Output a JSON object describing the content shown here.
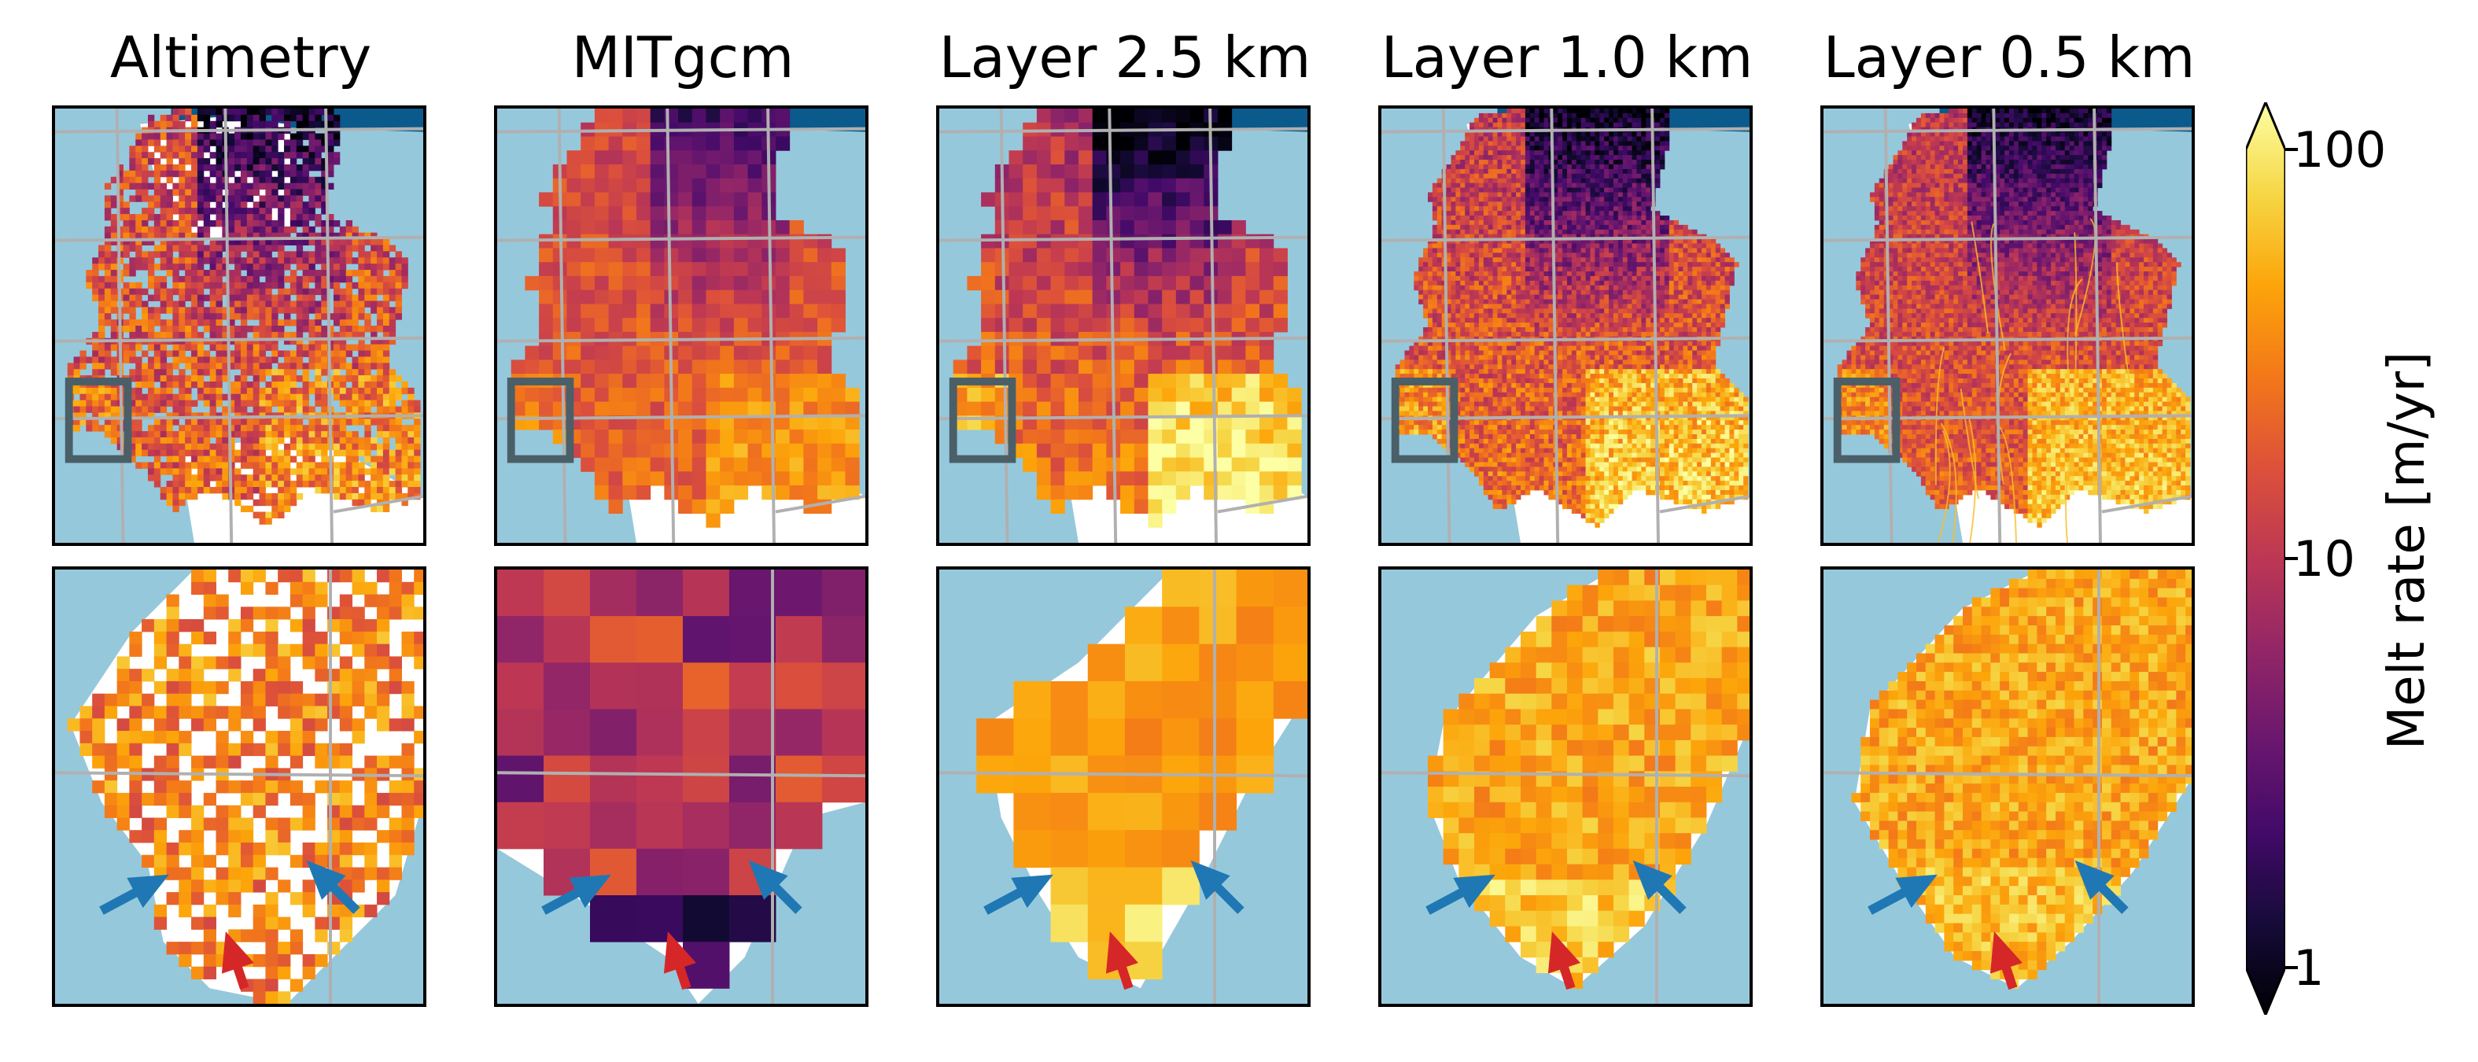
{
  "columns": [
    {
      "title": "Altimetry",
      "key": "altimetry"
    },
    {
      "title": "MITgcm",
      "key": "mitgcm"
    },
    {
      "title": "Layer 2.5 km",
      "key": "layer25"
    },
    {
      "title": "Layer 1.0 km",
      "key": "layer10"
    },
    {
      "title": "Layer 0.5 km",
      "key": "layer05"
    }
  ],
  "colors": {
    "ocean": "#96c8dc",
    "land": "#ffffff",
    "ice_sheet": "#0a5a8c",
    "grid": "#b0b0b0",
    "inset_box": "#4a5f68",
    "arrow_blue": "#1f78b4",
    "arrow_red": "#d62728"
  },
  "colorbar": {
    "label": "Melt rate [m/yr]",
    "scale": "log",
    "range": [
      1,
      100
    ],
    "ticks": [
      "100",
      "10",
      "1"
    ],
    "colormap": "inferno"
  },
  "chart_data": {
    "type": "heatmap",
    "layout": "2 rows x 5 columns; top row overview maps, bottom row zoomed insets",
    "value": "basal melt rate",
    "unit": "m/yr",
    "colorbar_range": [
      1,
      100
    ],
    "colorbar_scale": "log",
    "grid": true,
    "annotations": "inset box drawn on each overview map; bottom insets show two blue arrows and one red arrow"
  }
}
